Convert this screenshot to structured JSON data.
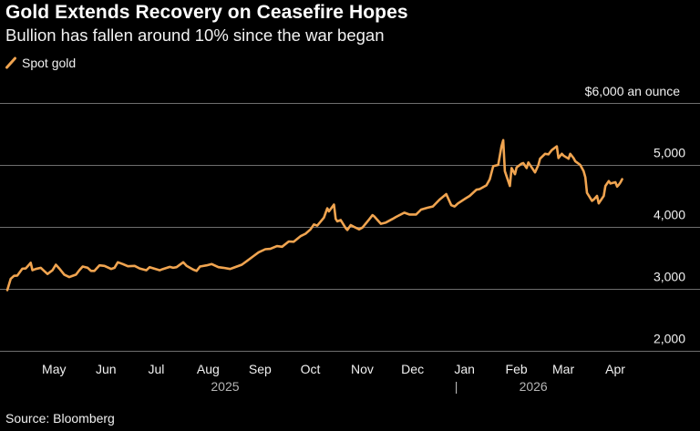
{
  "header": {
    "title": "Gold Extends Recovery on Ceasefire Hopes",
    "subtitle": "Bullion has fallen around 10% since the war began"
  },
  "footer": {
    "source": "Source: Bloomberg"
  },
  "colors": {
    "line": "#f0a450",
    "grid": "#6e6e6e",
    "background": "#000000",
    "text": "#f0f0f0"
  },
  "chart_data": {
    "type": "line",
    "title": "Gold Extends Recovery on Ceasefire Hopes",
    "subtitle": "Bullion has fallen around 10% since the war began",
    "legend": {
      "position": "top-left",
      "entries": [
        "Spot gold"
      ]
    },
    "ylabel": "$6,000 an ounce",
    "ylim": [
      2000,
      6000
    ],
    "grid": true,
    "y_ticks": [
      {
        "value": 6000,
        "label": "$6,000 an ounce"
      },
      {
        "value": 5000,
        "label": "5,000"
      },
      {
        "value": 4000,
        "label": "4,000"
      },
      {
        "value": 3000,
        "label": "3,000"
      },
      {
        "value": 2000,
        "label": "2,000"
      }
    ],
    "x_ticks": [
      {
        "date": "2025-05-01",
        "label": "May"
      },
      {
        "date": "2025-06-01",
        "label": "Jun"
      },
      {
        "date": "2025-07-01",
        "label": "Jul"
      },
      {
        "date": "2025-08-01",
        "label": "Aug"
      },
      {
        "date": "2025-09-01",
        "label": "Sep"
      },
      {
        "date": "2025-10-01",
        "label": "Oct"
      },
      {
        "date": "2025-11-01",
        "label": "Nov"
      },
      {
        "date": "2025-12-01",
        "label": "Dec"
      },
      {
        "date": "2026-01-01",
        "label": "Jan"
      },
      {
        "date": "2026-02-01",
        "label": "Feb"
      },
      {
        "date": "2026-03-01",
        "label": "Mar"
      },
      {
        "date": "2026-04-01",
        "label": "Apr"
      }
    ],
    "year_labels": [
      {
        "date": "2025-08-16",
        "label": "2025"
      },
      {
        "date": "2026-02-16",
        "label": "2026"
      }
    ],
    "year_divider": {
      "date": "2026-01-01",
      "label": "|"
    },
    "xlim": [
      "2025-04-08",
      "2026-04-26"
    ],
    "series": [
      {
        "name": "Spot gold",
        "color": "#f0a450",
        "points": [
          [
            "2025-04-08",
            2980
          ],
          [
            "2025-04-10",
            3160
          ],
          [
            "2025-04-12",
            3210
          ],
          [
            "2025-04-14",
            3215
          ],
          [
            "2025-04-17",
            3325
          ],
          [
            "2025-04-19",
            3330
          ],
          [
            "2025-04-21",
            3390
          ],
          [
            "2025-04-22",
            3420
          ],
          [
            "2025-04-23",
            3300
          ],
          [
            "2025-04-25",
            3320
          ],
          [
            "2025-04-28",
            3340
          ],
          [
            "2025-04-30",
            3290
          ],
          [
            "2025-05-02",
            3240
          ],
          [
            "2025-05-05",
            3300
          ],
          [
            "2025-05-07",
            3390
          ],
          [
            "2025-05-09",
            3330
          ],
          [
            "2025-05-12",
            3230
          ],
          [
            "2025-05-15",
            3190
          ],
          [
            "2025-05-16",
            3200
          ],
          [
            "2025-05-19",
            3230
          ],
          [
            "2025-05-21",
            3300
          ],
          [
            "2025-05-23",
            3360
          ],
          [
            "2025-05-26",
            3340
          ],
          [
            "2025-05-28",
            3290
          ],
          [
            "2025-05-30",
            3290
          ],
          [
            "2025-06-02",
            3380
          ],
          [
            "2025-06-05",
            3370
          ],
          [
            "2025-06-09",
            3320
          ],
          [
            "2025-06-11",
            3340
          ],
          [
            "2025-06-13",
            3430
          ],
          [
            "2025-06-16",
            3400
          ],
          [
            "2025-06-19",
            3365
          ],
          [
            "2025-06-23",
            3370
          ],
          [
            "2025-06-26",
            3330
          ],
          [
            "2025-06-30",
            3300
          ],
          [
            "2025-07-02",
            3350
          ],
          [
            "2025-07-08",
            3300
          ],
          [
            "2025-07-10",
            3320
          ],
          [
            "2025-07-14",
            3355
          ],
          [
            "2025-07-16",
            3340
          ],
          [
            "2025-07-18",
            3350
          ],
          [
            "2025-07-22",
            3430
          ],
          [
            "2025-07-24",
            3370
          ],
          [
            "2025-07-28",
            3310
          ],
          [
            "2025-07-30",
            3290
          ],
          [
            "2025-08-01",
            3360
          ],
          [
            "2025-08-05",
            3380
          ],
          [
            "2025-08-08",
            3400
          ],
          [
            "2025-08-12",
            3350
          ],
          [
            "2025-08-15",
            3340
          ],
          [
            "2025-08-19",
            3320
          ],
          [
            "2025-08-21",
            3340
          ],
          [
            "2025-08-26",
            3390
          ],
          [
            "2025-08-29",
            3450
          ],
          [
            "2025-09-02",
            3530
          ],
          [
            "2025-09-05",
            3590
          ],
          [
            "2025-09-09",
            3640
          ],
          [
            "2025-09-12",
            3645
          ],
          [
            "2025-09-16",
            3690
          ],
          [
            "2025-09-19",
            3680
          ],
          [
            "2025-09-23",
            3765
          ],
          [
            "2025-09-26",
            3760
          ],
          [
            "2025-09-30",
            3850
          ],
          [
            "2025-10-03",
            3890
          ],
          [
            "2025-10-06",
            3960
          ],
          [
            "2025-10-08",
            4040
          ],
          [
            "2025-10-10",
            4020
          ],
          [
            "2025-10-14",
            4150
          ],
          [
            "2025-10-16",
            4300
          ],
          [
            "2025-10-17",
            4250
          ],
          [
            "2025-10-20",
            4360
          ],
          [
            "2025-10-21",
            4130
          ],
          [
            "2025-10-22",
            4090
          ],
          [
            "2025-10-24",
            4110
          ],
          [
            "2025-10-27",
            3980
          ],
          [
            "2025-10-28",
            3950
          ],
          [
            "2025-10-30",
            4030
          ],
          [
            "2025-11-01",
            4000
          ],
          [
            "2025-11-04",
            3960
          ],
          [
            "2025-11-06",
            3990
          ],
          [
            "2025-11-10",
            4120
          ],
          [
            "2025-11-12",
            4190
          ],
          [
            "2025-11-13",
            4170
          ],
          [
            "2025-11-17",
            4050
          ],
          [
            "2025-11-20",
            4070
          ],
          [
            "2025-11-24",
            4130
          ],
          [
            "2025-11-26",
            4160
          ],
          [
            "2025-12-01",
            4230
          ],
          [
            "2025-12-04",
            4200
          ],
          [
            "2025-12-08",
            4200
          ],
          [
            "2025-12-11",
            4280
          ],
          [
            "2025-12-15",
            4310
          ],
          [
            "2025-12-18",
            4330
          ],
          [
            "2025-12-22",
            4440
          ],
          [
            "2025-12-26",
            4530
          ],
          [
            "2025-12-29",
            4350
          ],
          [
            "2025-12-31",
            4330
          ],
          [
            "2026-01-02",
            4380
          ],
          [
            "2026-01-06",
            4450
          ],
          [
            "2026-01-09",
            4500
          ],
          [
            "2026-01-13",
            4600
          ],
          [
            "2026-01-15",
            4610
          ],
          [
            "2026-01-19",
            4670
          ],
          [
            "2026-01-21",
            4770
          ],
          [
            "2026-01-23",
            4980
          ],
          [
            "2026-01-26",
            5000
          ],
          [
            "2026-01-28",
            5300
          ],
          [
            "2026-01-29",
            5400
          ],
          [
            "2026-01-30",
            4900
          ],
          [
            "2026-02-02",
            4660
          ],
          [
            "2026-02-03",
            4950
          ],
          [
            "2026-02-05",
            4850
          ],
          [
            "2026-02-06",
            4960
          ],
          [
            "2026-02-09",
            5020
          ],
          [
            "2026-02-10",
            5030
          ],
          [
            "2026-02-12",
            4950
          ],
          [
            "2026-02-13",
            5040
          ],
          [
            "2026-02-17",
            4880
          ],
          [
            "2026-02-19",
            5000
          ],
          [
            "2026-02-20",
            5100
          ],
          [
            "2026-02-23",
            5180
          ],
          [
            "2026-02-25",
            5170
          ],
          [
            "2026-02-27",
            5240
          ],
          [
            "2026-03-02",
            5300
          ],
          [
            "2026-03-03",
            5110
          ],
          [
            "2026-03-05",
            5180
          ],
          [
            "2026-03-06",
            5150
          ],
          [
            "2026-03-09",
            5100
          ],
          [
            "2026-03-10",
            5180
          ],
          [
            "2026-03-12",
            5110
          ],
          [
            "2026-03-13",
            5060
          ],
          [
            "2026-03-16",
            5000
          ],
          [
            "2026-03-18",
            4900
          ],
          [
            "2026-03-19",
            4800
          ],
          [
            "2026-03-20",
            4550
          ],
          [
            "2026-03-23",
            4420
          ],
          [
            "2026-03-24",
            4440
          ],
          [
            "2026-03-26",
            4500
          ],
          [
            "2026-03-27",
            4380
          ],
          [
            "2026-03-30",
            4500
          ],
          [
            "2026-03-31",
            4660
          ],
          [
            "2026-04-02",
            4740
          ],
          [
            "2026-04-03",
            4700
          ],
          [
            "2026-04-06",
            4720
          ],
          [
            "2026-04-07",
            4650
          ],
          [
            "2026-04-08",
            4680
          ],
          [
            "2026-04-09",
            4720
          ],
          [
            "2026-04-10",
            4770
          ]
        ]
      }
    ]
  }
}
